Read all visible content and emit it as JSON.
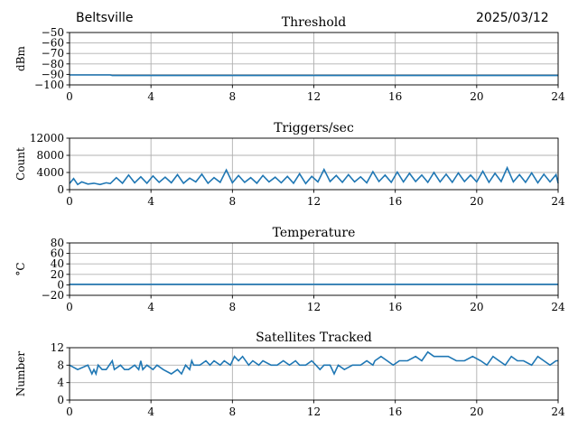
{
  "header": {
    "site": "Beltsville",
    "date": "2025/03/12"
  },
  "colors": {
    "line": "#1f77b4",
    "grid": "#b0b0b0",
    "axis": "#000000"
  },
  "chart_data": [
    {
      "type": "line",
      "title": "Threshold",
      "ylabel": "dBm",
      "xlabel": "",
      "xlim": [
        0,
        24
      ],
      "ylim": [
        -100,
        -50
      ],
      "xticks": [
        0,
        4,
        8,
        12,
        16,
        20,
        24
      ],
      "yticks": [
        -100,
        -90,
        -80,
        -70,
        -60,
        -50
      ],
      "ytick_labels": [
        "−100",
        "−90",
        "−80",
        "−70",
        "−60",
        "−50"
      ],
      "grid": true,
      "series": [
        {
          "x": [
            0,
            2,
            2.1,
            6,
            8,
            10,
            12,
            16,
            20,
            24
          ],
          "y": [
            -90.5,
            -90.5,
            -91,
            -91,
            -91,
            -91,
            -91,
            -91,
            -91,
            -91
          ]
        }
      ]
    },
    {
      "type": "line",
      "title": "Triggers/sec",
      "ylabel": "Count",
      "xlabel": "",
      "xlim": [
        0,
        24
      ],
      "ylim": [
        0,
        12000
      ],
      "xticks": [
        0,
        4,
        8,
        12,
        16,
        20,
        24
      ],
      "yticks": [
        0,
        4000,
        8000,
        12000
      ],
      "ytick_labels": [
        "0",
        "4000",
        "8000",
        "12000"
      ],
      "grid": true,
      "series": [
        {
          "x": [
            0,
            0.2,
            0.4,
            0.6,
            0.9,
            1.2,
            1.5,
            1.8,
            2.0,
            2.3,
            2.6,
            2.9,
            3.2,
            3.5,
            3.8,
            4.1,
            4.4,
            4.7,
            5.0,
            5.3,
            5.6,
            5.9,
            6.2,
            6.5,
            6.8,
            7.1,
            7.4,
            7.7,
            8.0,
            8.3,
            8.6,
            8.9,
            9.2,
            9.5,
            9.8,
            10.1,
            10.4,
            10.7,
            11.0,
            11.3,
            11.6,
            11.9,
            12.2,
            12.5,
            12.8,
            13.1,
            13.4,
            13.7,
            14.0,
            14.3,
            14.6,
            14.9,
            15.2,
            15.5,
            15.8,
            16.1,
            16.4,
            16.7,
            17.0,
            17.3,
            17.6,
            17.9,
            18.2,
            18.5,
            18.8,
            19.1,
            19.4,
            19.7,
            20.0,
            20.3,
            20.6,
            20.9,
            21.2,
            21.5,
            21.8,
            22.1,
            22.4,
            22.7,
            23.0,
            23.3,
            23.6,
            23.9,
            24
          ],
          "y": [
            1400,
            2600,
            1200,
            1800,
            1300,
            1500,
            1200,
            1600,
            1400,
            2800,
            1500,
            3400,
            1600,
            3000,
            1500,
            3200,
            1700,
            2900,
            1600,
            3500,
            1500,
            2700,
            1800,
            3600,
            1500,
            2800,
            1700,
            4600,
            1600,
            3300,
            1700,
            2800,
            1500,
            3300,
            1800,
            2900,
            1600,
            3100,
            1500,
            3700,
            1400,
            3100,
            1800,
            4700,
            1900,
            3300,
            1700,
            3500,
            1800,
            3000,
            1600,
            4200,
            1900,
            3400,
            1700,
            4100,
            1800,
            3800,
            1900,
            3400,
            1700,
            4000,
            1800,
            3600,
            1700,
            3900,
            1900,
            3400,
            1800,
            4300,
            1700,
            3800,
            1900,
            5100,
            1800,
            3500,
            1700,
            3900,
            1600,
            3600,
            1800,
            3500,
            1500
          ]
        }
      ]
    },
    {
      "type": "line",
      "title": "Temperature",
      "ylabel": "°C",
      "xlabel": "",
      "xlim": [
        0,
        24
      ],
      "ylim": [
        -20,
        80
      ],
      "xticks": [
        0,
        4,
        8,
        12,
        16,
        20,
        24
      ],
      "yticks": [
        -20,
        0,
        20,
        40,
        60,
        80
      ],
      "ytick_labels": [
        "−20",
        "0",
        "20",
        "40",
        "60",
        "80"
      ],
      "grid": true,
      "series": [
        {
          "x": [
            0,
            24
          ],
          "y": [
            1,
            1
          ]
        }
      ]
    },
    {
      "type": "line",
      "title": "Satellites Tracked",
      "ylabel": "Number",
      "xlabel": "",
      "xlim": [
        0,
        24
      ],
      "ylim": [
        0,
        12
      ],
      "xticks": [
        0,
        4,
        8,
        12,
        16,
        20,
        24
      ],
      "yticks": [
        0,
        4,
        8,
        12
      ],
      "ytick_labels": [
        "0",
        "4",
        "8",
        "12"
      ],
      "grid": true,
      "series": [
        {
          "x": [
            0,
            0.4,
            0.9,
            1.1,
            1.2,
            1.3,
            1.4,
            1.6,
            1.8,
            2.1,
            2.2,
            2.5,
            2.7,
            2.9,
            3.2,
            3.4,
            3.5,
            3.6,
            3.8,
            4.1,
            4.3,
            4.6,
            5.0,
            5.3,
            5.5,
            5.7,
            5.9,
            6.0,
            6.1,
            6.4,
            6.7,
            6.9,
            7.1,
            7.4,
            7.6,
            7.9,
            8.1,
            8.3,
            8.5,
            8.8,
            9.0,
            9.3,
            9.5,
            9.9,
            10.2,
            10.5,
            10.8,
            11.1,
            11.3,
            11.6,
            11.9,
            12.1,
            12.3,
            12.5,
            12.8,
            13.0,
            13.2,
            13.5,
            13.9,
            14.3,
            14.6,
            14.9,
            15.0,
            15.3,
            15.6,
            15.9,
            16.2,
            16.6,
            17.0,
            17.3,
            17.6,
            17.9,
            18.2,
            18.6,
            19.0,
            19.4,
            19.8,
            20.2,
            20.5,
            20.8,
            21.1,
            21.4,
            21.7,
            22.0,
            22.3,
            22.7,
            23.0,
            23.3,
            23.6,
            23.9,
            24
          ],
          "y": [
            8,
            7,
            8,
            6,
            7,
            6,
            8,
            7,
            7,
            9,
            7,
            8,
            7,
            7,
            8,
            7,
            9,
            7,
            8,
            7,
            8,
            7,
            6,
            7,
            6,
            8,
            7,
            9,
            8,
            8,
            9,
            8,
            9,
            8,
            9,
            8,
            10,
            9,
            10,
            8,
            9,
            8,
            9,
            8,
            8,
            9,
            8,
            9,
            8,
            8,
            9,
            8,
            7,
            8,
            8,
            6,
            8,
            7,
            8,
            8,
            9,
            8,
            9,
            10,
            9,
            8,
            9,
            9,
            10,
            9,
            11,
            10,
            10,
            10,
            9,
            9,
            10,
            9,
            8,
            10,
            9,
            8,
            10,
            9,
            9,
            8,
            10,
            9,
            8,
            9,
            9
          ]
        }
      ]
    }
  ]
}
